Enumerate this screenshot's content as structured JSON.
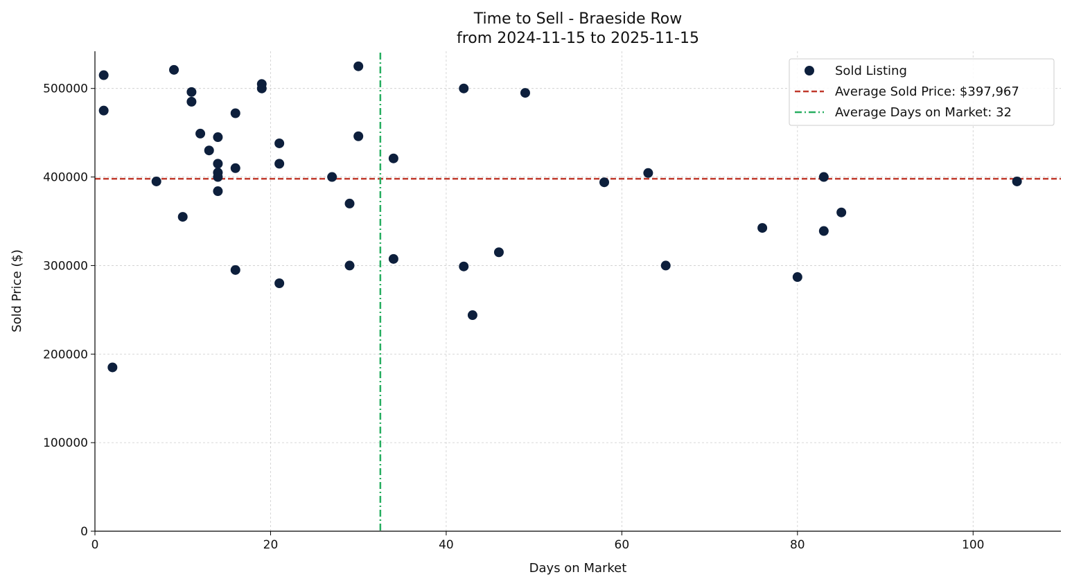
{
  "chart_data": {
    "type": "scatter",
    "title": "Time to Sell - Braeside Row",
    "subtitle": "from 2024-11-15 to 2025-11-15",
    "xlabel": "Days on Market",
    "ylabel": "Sold Price ($)",
    "xlim": [
      0,
      110
    ],
    "ylim": [
      0,
      542000
    ],
    "xticks": [
      0,
      20,
      40,
      60,
      80,
      100
    ],
    "yticks": [
      0,
      100000,
      200000,
      300000,
      400000,
      500000
    ],
    "grid": true,
    "legend_position": "top-right",
    "legend": [
      "Sold Listing",
      "Average Sold Price: $397,967",
      "Average Days on Market: 32"
    ],
    "avg_price": 397967,
    "avg_days": 32.5,
    "colors": {
      "points": "#0d1f3c",
      "avg_price": "#c0392b",
      "avg_days": "#27ae60"
    },
    "points": [
      [
        1,
        515000
      ],
      [
        1,
        475000
      ],
      [
        2,
        185000
      ],
      [
        7,
        395000
      ],
      [
        9,
        521000
      ],
      [
        10,
        355000
      ],
      [
        11,
        496000
      ],
      [
        11,
        485000
      ],
      [
        12,
        449000
      ],
      [
        13,
        430000
      ],
      [
        14,
        445000
      ],
      [
        14,
        415000
      ],
      [
        14,
        405000
      ],
      [
        14,
        400000
      ],
      [
        14,
        384000
      ],
      [
        16,
        472000
      ],
      [
        16,
        410000
      ],
      [
        16,
        295000
      ],
      [
        19,
        505000
      ],
      [
        19,
        500000
      ],
      [
        21,
        438000
      ],
      [
        21,
        415000
      ],
      [
        21,
        280000
      ],
      [
        27,
        400000
      ],
      [
        29,
        370000
      ],
      [
        29,
        300000
      ],
      [
        30,
        525000
      ],
      [
        30,
        446000
      ],
      [
        34,
        421000
      ],
      [
        34,
        307500
      ],
      [
        42,
        500000
      ],
      [
        42,
        299000
      ],
      [
        43,
        244000
      ],
      [
        46,
        315000
      ],
      [
        49,
        495000
      ],
      [
        58,
        394000
      ],
      [
        63,
        404500
      ],
      [
        65,
        300000
      ],
      [
        76,
        342500
      ],
      [
        80,
        287000
      ],
      [
        83,
        400000
      ],
      [
        83,
        339000
      ],
      [
        85,
        360000
      ],
      [
        105,
        395000
      ]
    ]
  }
}
